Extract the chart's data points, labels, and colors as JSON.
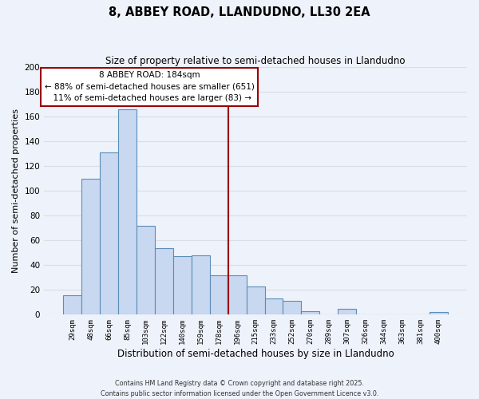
{
  "title": "8, ABBEY ROAD, LLANDUDNO, LL30 2EA",
  "subtitle": "Size of property relative to semi-detached houses in Llandudno",
  "xlabel": "Distribution of semi-detached houses by size in Llandudno",
  "ylabel": "Number of semi-detached properties",
  "bin_labels": [
    "29sqm",
    "48sqm",
    "66sqm",
    "85sqm",
    "103sqm",
    "122sqm",
    "140sqm",
    "159sqm",
    "178sqm",
    "196sqm",
    "215sqm",
    "233sqm",
    "252sqm",
    "270sqm",
    "289sqm",
    "307sqm",
    "326sqm",
    "344sqm",
    "363sqm",
    "381sqm",
    "400sqm"
  ],
  "bar_values": [
    16,
    110,
    131,
    166,
    72,
    54,
    47,
    48,
    32,
    32,
    23,
    13,
    11,
    3,
    0,
    5,
    0,
    0,
    0,
    0,
    2
  ],
  "bar_color": "#c8d8f0",
  "bar_edge_color": "#5b8db8",
  "ylim": [
    0,
    200
  ],
  "yticks": [
    0,
    20,
    40,
    60,
    80,
    100,
    120,
    140,
    160,
    180,
    200
  ],
  "property_label": "8 ABBEY ROAD: 184sqm",
  "pct_smaller": 88,
  "count_smaller": 651,
  "pct_larger": 11,
  "count_larger": 83,
  "vline_color": "#990000",
  "annotation_box_color": "#ffffff",
  "annotation_box_edge": "#990000",
  "bg_color": "#eef2fa",
  "grid_color": "#d8dde8",
  "footer_line1": "Contains HM Land Registry data © Crown copyright and database right 2025.",
  "footer_line2": "Contains public sector information licensed under the Open Government Licence v3.0."
}
